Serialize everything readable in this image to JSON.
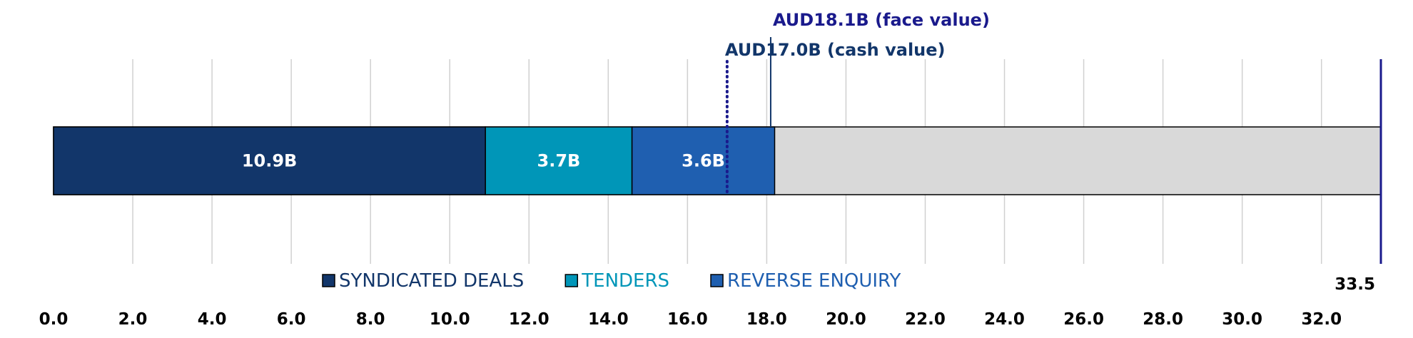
{
  "chart_data": {
    "type": "bar",
    "orientation": "horizontal",
    "stacked": true,
    "xlim": [
      0,
      33.5
    ],
    "x_ticks": [
      "0.0",
      "2.0",
      "4.0",
      "6.0",
      "8.0",
      "10.0",
      "12.0",
      "14.0",
      "16.0",
      "18.0",
      "20.0",
      "22.0",
      "24.0",
      "26.0",
      "28.0",
      "30.0",
      "32.0"
    ],
    "total_label": "33.5",
    "grid": true,
    "series": [
      {
        "name": "SYNDICATED DEALS",
        "value": 10.9,
        "label": "10.9B",
        "color": "#12366a",
        "legend_color": "#12366a"
      },
      {
        "name": "TENDERS",
        "value": 3.7,
        "label": "3.7B",
        "color": "#0096b8",
        "legend_color": "#0096b8"
      },
      {
        "name": "REVERSE ENQUIRY",
        "value": 3.6,
        "label": "3.6B",
        "color": "#1f5fb0",
        "legend_color": "#1f5fb0"
      }
    ],
    "remainder_color": "#d9d9d9",
    "annotations": [
      {
        "text": "AUD18.1B (face value)",
        "x": 18.1,
        "line_style": "solid",
        "color": "#1a1a8c"
      },
      {
        "text": "AUD17.0B (cash value)",
        "x": 17.0,
        "line_style": "dotted",
        "color": "#1a1a8c"
      }
    ],
    "end_marker_color": "#1a1a8c",
    "legend_position": "bottom"
  }
}
